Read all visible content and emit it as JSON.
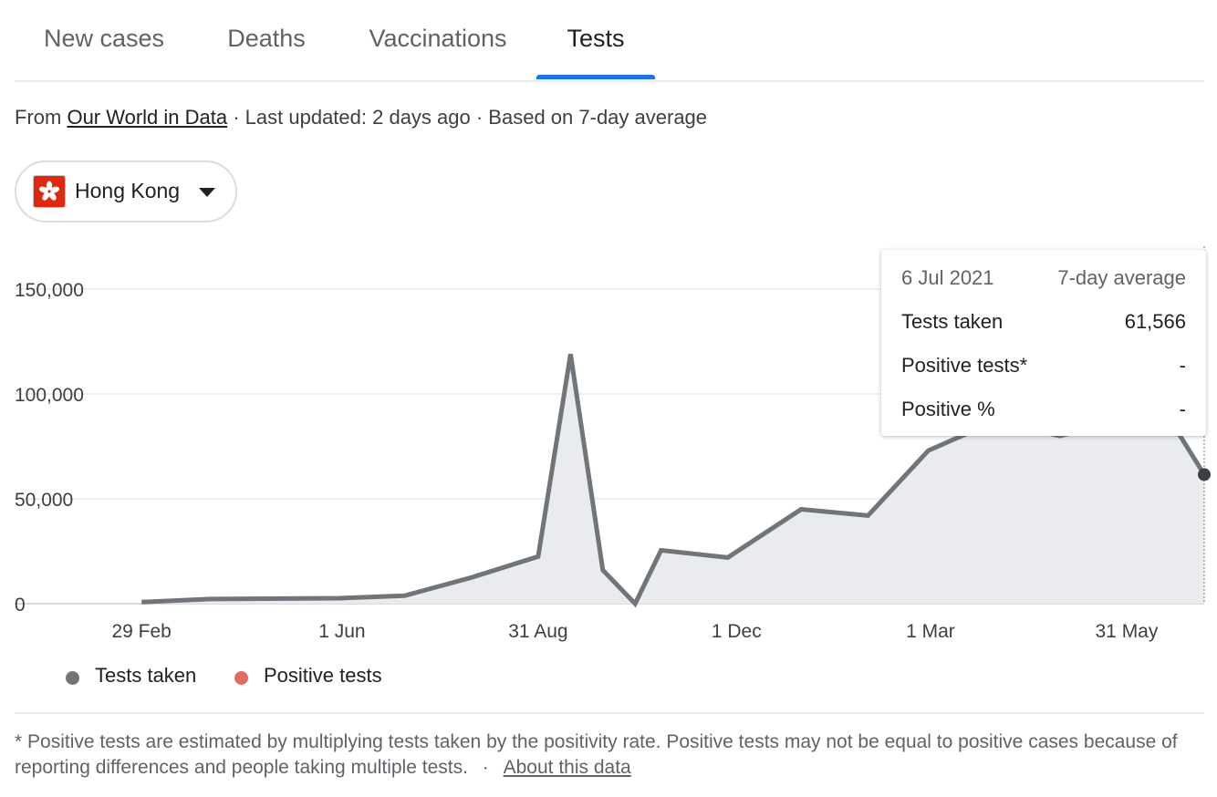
{
  "tabs": [
    {
      "label": "New cases"
    },
    {
      "label": "Deaths"
    },
    {
      "label": "Vaccinations"
    },
    {
      "label": "Tests",
      "active": true
    }
  ],
  "source": {
    "prefix": "From",
    "link": "Our World in Data",
    "updated": "· Last updated: 2 days ago · Based on 7-day average"
  },
  "country": {
    "name": "Hong Kong",
    "flag": "hong-kong-flag"
  },
  "tooltip": {
    "date": "6 Jul 2021",
    "avg_label": "7-day average",
    "rows": [
      {
        "label": "Tests taken",
        "value": "61,566"
      },
      {
        "label": "Positive tests*",
        "value": "-"
      },
      {
        "label": "Positive %",
        "value": "-"
      }
    ]
  },
  "legend": [
    {
      "label": "Tests taken",
      "color": "#70757a"
    },
    {
      "label": "Positive tests",
      "color": "#e06c5f"
    }
  ],
  "footnote": {
    "text": "* Positive tests are estimated by multiplying tests taken by the positivity rate. Positive tests may not be equal to positive cases because of reporting differences and people taking multiple tests.",
    "separator": "·",
    "link": "About this data"
  },
  "chart_data": {
    "type": "area",
    "x_type": "date",
    "xlim": [
      "2020-02-12",
      "2021-07-06"
    ],
    "ylim": [
      0,
      150000
    ],
    "yticks": [
      0,
      50000,
      100000,
      150000
    ],
    "ytick_labels": [
      "0",
      "50,000",
      "100,000",
      "150,000"
    ],
    "xticks": [
      "2020-02-29",
      "2020-06-01",
      "2020-08-31",
      "2020-12-01",
      "2021-03-01",
      "2021-05-31"
    ],
    "xtick_labels": [
      "29 Feb",
      "1 Jun",
      "31 Aug",
      "1 Dec",
      "1 Mar",
      "31 May"
    ],
    "series": [
      {
        "color": "#70757a",
        "points": [
          [
            "2020-02-29",
            800
          ],
          [
            "2020-04-01",
            2200
          ],
          [
            "2020-05-31",
            2600
          ],
          [
            "2020-06-30",
            3800
          ],
          [
            "2020-07-31",
            12500
          ],
          [
            "2020-08-31",
            22500
          ],
          [
            "2020-09-15",
            119000
          ],
          [
            "2020-09-30",
            16000
          ],
          [
            "2020-10-15",
            0
          ],
          [
            "2020-10-27",
            25500
          ],
          [
            "2020-11-27",
            22000
          ],
          [
            "2020-12-31",
            45000
          ],
          [
            "2021-01-31",
            42000
          ],
          [
            "2021-02-28",
            73000
          ],
          [
            "2021-03-31",
            87000
          ],
          [
            "2021-04-30",
            80000
          ],
          [
            "2021-05-31",
            88000
          ],
          [
            "2021-06-20",
            88000
          ],
          [
            "2021-07-06",
            61566
          ]
        ]
      }
    ],
    "grid": true,
    "highlight": {
      "x": "2021-07-06",
      "y": 61566
    }
  }
}
